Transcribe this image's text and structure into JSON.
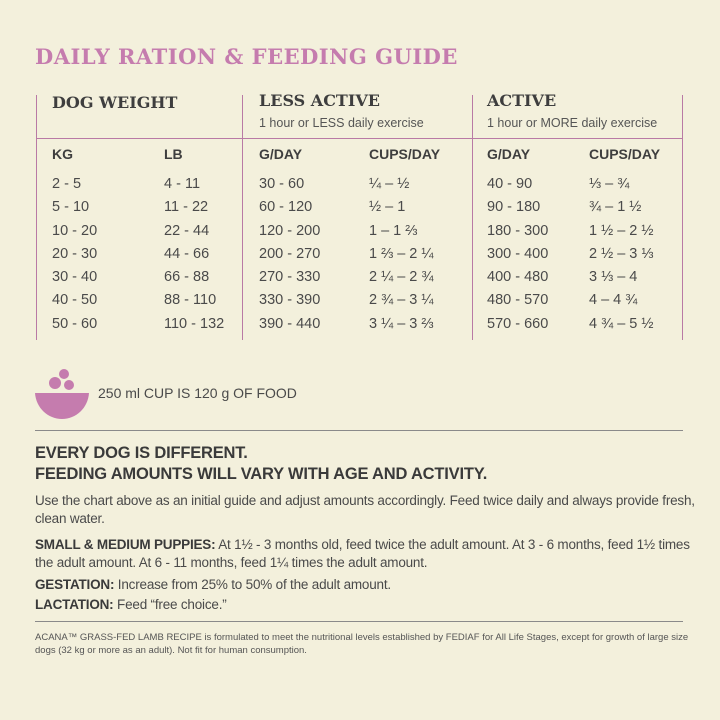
{
  "title": "DAILY RATION & FEEDING GUIDE",
  "groups": {
    "dog_weight": {
      "title": "DOG WEIGHT"
    },
    "less_active": {
      "title": "LESS ACTIVE",
      "subtitle": "1 hour or LESS daily exercise"
    },
    "active": {
      "title": "ACTIVE",
      "subtitle": "1 hour or MORE daily exercise"
    }
  },
  "columns": {
    "kg": {
      "header": "KG",
      "values": [
        "2 - 5",
        "5 - 10",
        "10 - 20",
        "20 - 30",
        "30 - 40",
        "40 - 50",
        "50 - 60"
      ]
    },
    "lb": {
      "header": "LB",
      "values": [
        "4 - 11",
        "11 - 22",
        "22 - 44",
        "44 - 66",
        "66 - 88",
        "88 - 110",
        "110 - 132"
      ]
    },
    "less_gday": {
      "header": "G/DAY",
      "values": [
        "30 - 60",
        "60 - 120",
        "120 - 200",
        "200 - 270",
        "270 - 330",
        "330 - 390",
        "390 - 440"
      ]
    },
    "less_cups": {
      "header": "CUPS/DAY",
      "values": [
        "¼ – ½",
        "½ – 1",
        "1 – 1 ⅔",
        "1 ⅔ – 2 ¼",
        "2 ¼ – 2 ¾",
        "2 ¾ – 3 ¼",
        "3 ¼ – 3 ⅔"
      ]
    },
    "active_gday": {
      "header": "G/DAY",
      "values": [
        "40 - 90",
        "90 - 180",
        "180 - 300",
        "300 - 400",
        "400 - 480",
        "480 - 570",
        "570 - 660"
      ]
    },
    "active_cups": {
      "header": "CUPS/DAY",
      "values": [
        "⅓ – ¾",
        "¾ – 1 ½",
        "1 ½ – 2 ½",
        "2 ½ – 3 ⅓",
        "3 ⅓ – 4",
        "4 – 4 ¾",
        "4 ¾ – 5 ½"
      ]
    }
  },
  "cup_note": "250 ml CUP IS 120 g OF FOOD",
  "headline_1": "EVERY DOG IS DIFFERENT.",
  "headline_2": "FEEDING AMOUNTS WILL VARY WITH AGE AND ACTIVITY.",
  "intro": "Use the chart above as an initial guide and adjust amounts accordingly. Feed twice daily and always provide fresh, clean water.",
  "puppies": {
    "label": "SMALL & MEDIUM PUPPIES:",
    "text": " At 1½ - 3 months old, feed twice the adult amount. At 3 - 6 months, feed 1½ times the adult amount. At 6 - 11 months, feed 1¼ times the adult amount."
  },
  "gestation": {
    "label": "GESTATION:",
    "text": " Increase from 25% to 50% of the adult amount."
  },
  "lactation": {
    "label": "LACTATION:",
    "text": " Feed “free choice.”"
  },
  "fine_print": "ACANA™ GRASS-FED LAMB RECIPE is formulated to meet the nutritional levels established by FEDIAF for All Life Stages, except for growth of large size dogs (32 kg or more as an adult). Not fit for human consumption.",
  "colors": {
    "accent": "#c57cae",
    "background": "#f3f0dc",
    "rule": "#b97aa5"
  }
}
